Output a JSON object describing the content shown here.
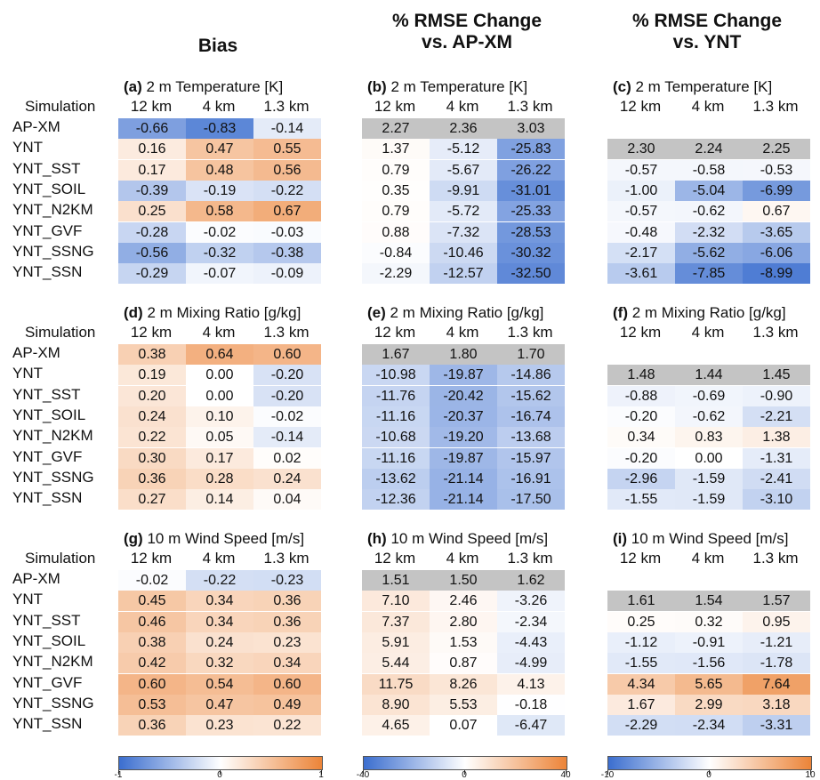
{
  "col_titles": {
    "bias": "Bias",
    "rmse_ap_line1": "% RMSE Change",
    "rmse_ap_line2": "vs. AP-XM",
    "rmse_ynt_line1": "% RMSE Change",
    "rmse_ynt_line2": "vs. YNT"
  },
  "simulation_label": "Simulation",
  "resolutions": [
    "12 km",
    "4 km",
    "1.3 km"
  ],
  "rows": [
    "AP-XM",
    "YNT",
    "YNT_SST",
    "YNT_SOIL",
    "YNT_N2KM",
    "YNT_GVF",
    "YNT_SSNG",
    "YNT_SSN"
  ],
  "colorbars": [
    {
      "min": -1,
      "mid": 0,
      "max": 1,
      "min_label": "-1",
      "mid_label": "0",
      "max_label": "1"
    },
    {
      "min": -40,
      "mid": 0,
      "max": 40,
      "min_label": "-40",
      "mid_label": "0",
      "max_label": "40"
    },
    {
      "min": -10,
      "mid": 0,
      "max": 10,
      "min_label": "-10",
      "mid_label": "0",
      "max_label": "10"
    }
  ],
  "colors": {
    "negative": "#3b6ecf",
    "positive": "#ec8438",
    "reference": "#c4c4c4"
  },
  "chart_data": {
    "type": "heatmap",
    "panels": [
      {
        "letter": "(a)",
        "title": "2 m Temperature [K]",
        "metric": "bias",
        "values": [
          [
            "-0.66",
            "-0.83",
            "-0.14"
          ],
          [
            "0.16",
            "0.47",
            "0.55"
          ],
          [
            "0.17",
            "0.48",
            "0.56"
          ],
          [
            "-0.39",
            "-0.19",
            "-0.22"
          ],
          [
            "0.25",
            "0.58",
            "0.67"
          ],
          [
            "-0.28",
            "-0.02",
            "-0.03"
          ],
          [
            "-0.56",
            "-0.32",
            "-0.38"
          ],
          [
            "-0.29",
            "-0.07",
            "-0.09"
          ]
        ]
      },
      {
        "letter": "(b)",
        "title": "2 m Temperature [K]",
        "metric": "rmse_ap",
        "values": [
          [
            "2.27",
            "2.36",
            "3.03"
          ],
          [
            "1.37",
            "-5.12",
            "-25.83"
          ],
          [
            "0.79",
            "-5.67",
            "-26.22"
          ],
          [
            "0.35",
            "-9.91",
            "-31.01"
          ],
          [
            "0.79",
            "-5.72",
            "-25.33"
          ],
          [
            "0.88",
            "-7.32",
            "-28.53"
          ],
          [
            "-0.84",
            "-10.46",
            "-30.32"
          ],
          [
            "-2.29",
            "-12.57",
            "-32.50"
          ]
        ]
      },
      {
        "letter": "(c)",
        "title": "2 m Temperature [K]",
        "metric": "rmse_ynt",
        "values": [
          null,
          [
            "2.30",
            "2.24",
            "2.25"
          ],
          [
            "-0.57",
            "-0.58",
            "-0.53"
          ],
          [
            "-1.00",
            "-5.04",
            "-6.99"
          ],
          [
            "-0.57",
            "-0.62",
            "0.67"
          ],
          [
            "-0.48",
            "-2.32",
            "-3.65"
          ],
          [
            "-2.17",
            "-5.62",
            "-6.06"
          ],
          [
            "-3.61",
            "-7.85",
            "-8.99"
          ]
        ]
      },
      {
        "letter": "(d)",
        "title": "2 m Mixing Ratio [g/kg]",
        "metric": "bias",
        "values": [
          [
            "0.38",
            "0.64",
            "0.60"
          ],
          [
            "0.19",
            "0.00",
            "-0.20"
          ],
          [
            "0.20",
            "0.00",
            "-0.20"
          ],
          [
            "0.24",
            "0.10",
            "-0.02"
          ],
          [
            "0.22",
            "0.05",
            "-0.14"
          ],
          [
            "0.30",
            "0.17",
            "0.02"
          ],
          [
            "0.36",
            "0.28",
            "0.24"
          ],
          [
            "0.27",
            "0.14",
            "0.04"
          ]
        ]
      },
      {
        "letter": "(e)",
        "title": "2 m Mixing Ratio [g/kg]",
        "metric": "rmse_ap",
        "values": [
          [
            "1.67",
            "1.80",
            "1.70"
          ],
          [
            "-10.98",
            "-19.87",
            "-14.86"
          ],
          [
            "-11.76",
            "-20.42",
            "-15.62"
          ],
          [
            "-11.16",
            "-20.37",
            "-16.74"
          ],
          [
            "-10.68",
            "-19.20",
            "-13.68"
          ],
          [
            "-11.16",
            "-19.87",
            "-15.97"
          ],
          [
            "-13.62",
            "-21.14",
            "-16.91"
          ],
          [
            "-12.36",
            "-21.14",
            "-17.50"
          ]
        ]
      },
      {
        "letter": "(f)",
        "title": "2 m Mixing Ratio [g/kg]",
        "metric": "rmse_ynt",
        "values": [
          null,
          [
            "1.48",
            "1.44",
            "1.45"
          ],
          [
            "-0.88",
            "-0.69",
            "-0.90"
          ],
          [
            "-0.20",
            "-0.62",
            "-2.21"
          ],
          [
            "0.34",
            "0.83",
            "1.38"
          ],
          [
            "-0.20",
            "0.00",
            "-1.31"
          ],
          [
            "-2.96",
            "-1.59",
            "-2.41"
          ],
          [
            "-1.55",
            "-1.59",
            "-3.10"
          ]
        ]
      },
      {
        "letter": "(g)",
        "title": "10 m Wind Speed [m/s]",
        "metric": "bias",
        "values": [
          [
            "-0.02",
            "-0.22",
            "-0.23"
          ],
          [
            "0.45",
            "0.34",
            "0.36"
          ],
          [
            "0.46",
            "0.34",
            "0.36"
          ],
          [
            "0.38",
            "0.24",
            "0.23"
          ],
          [
            "0.42",
            "0.32",
            "0.34"
          ],
          [
            "0.60",
            "0.54",
            "0.60"
          ],
          [
            "0.53",
            "0.47",
            "0.49"
          ],
          [
            "0.36",
            "0.23",
            "0.22"
          ]
        ]
      },
      {
        "letter": "(h)",
        "title": "10 m Wind Speed [m/s]",
        "metric": "rmse_ap",
        "values": [
          [
            "1.51",
            "1.50",
            "1.62"
          ],
          [
            "7.10",
            "2.46",
            "-3.26"
          ],
          [
            "7.37",
            "2.80",
            "-2.34"
          ],
          [
            "5.91",
            "1.53",
            "-4.43"
          ],
          [
            "5.44",
            "0.87",
            "-4.99"
          ],
          [
            "11.75",
            "8.26",
            "4.13"
          ],
          [
            "8.90",
            "5.53",
            "-0.18"
          ],
          [
            "4.65",
            "0.07",
            "-6.47"
          ]
        ]
      },
      {
        "letter": "(i)",
        "title": "10 m Wind Speed [m/s]",
        "metric": "rmse_ynt",
        "values": [
          null,
          [
            "1.61",
            "1.54",
            "1.57"
          ],
          [
            "0.25",
            "0.32",
            "0.95"
          ],
          [
            "-1.12",
            "-0.91",
            "-1.21"
          ],
          [
            "-1.55",
            "-1.56",
            "-1.78"
          ],
          [
            "4.34",
            "5.65",
            "7.64"
          ],
          [
            "1.67",
            "2.99",
            "3.18"
          ],
          [
            "-2.29",
            "-2.34",
            "-3.31"
          ]
        ]
      }
    ]
  }
}
